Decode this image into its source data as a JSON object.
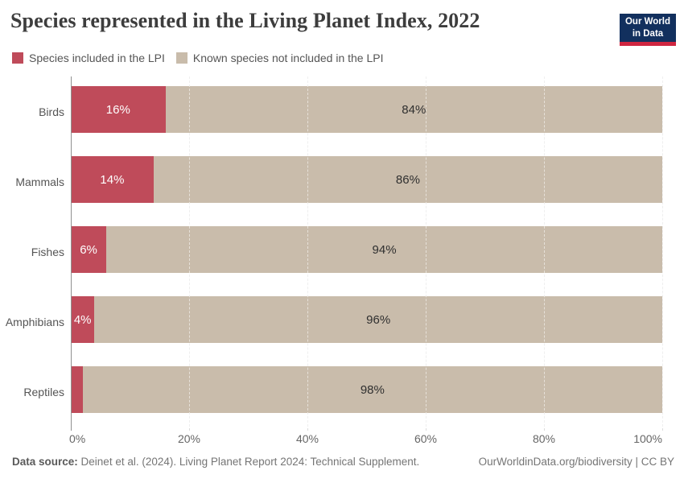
{
  "header": {
    "title": "Species represented in the Living Planet Index, 2022",
    "logo": {
      "line1": "Our World",
      "line2": "in Data",
      "bg_color": "#12305e",
      "accent_color": "#cf2540"
    }
  },
  "legend": {
    "items": [
      {
        "label": "Species included in the LPI",
        "color": "#bf4b5a"
      },
      {
        "label": "Known species not included in the LPI",
        "color": "#c9bcab"
      }
    ]
  },
  "chart_data": {
    "type": "bar",
    "orientation": "horizontal",
    "stacked": true,
    "title": "Species represented in the Living Planet Index, 2022",
    "categories": [
      "Birds",
      "Mammals",
      "Fishes",
      "Amphibians",
      "Reptiles"
    ],
    "series": [
      {
        "name": "Species included in the LPI",
        "color": "#bf4b5a",
        "label_color": "#ffffff",
        "values": [
          16,
          14,
          6,
          4,
          2
        ],
        "labels": [
          "16%",
          "14%",
          "6%",
          "4%",
          ""
        ]
      },
      {
        "name": "Known species not included in the LPI",
        "color": "#c9bcab",
        "label_color": "#2f2f2f",
        "values": [
          84,
          86,
          94,
          96,
          98
        ],
        "labels": [
          "84%",
          "86%",
          "94%",
          "96%",
          "98%"
        ]
      }
    ],
    "xlim": [
      0,
      100
    ],
    "x_tick_values": [
      0,
      20,
      40,
      60,
      80,
      100
    ],
    "x_tick_labels": [
      "0%",
      "20%",
      "40%",
      "60%",
      "80%",
      "100%"
    ],
    "grid": "vertical-dashed",
    "legend_position": "top-left"
  },
  "footer": {
    "source_label": "Data source:",
    "source_text": "Deinet et al. (2024). Living Planet Report 2024: Technical Supplement.",
    "credit_text": "OurWorldinData.org/biodiversity | CC BY"
  }
}
